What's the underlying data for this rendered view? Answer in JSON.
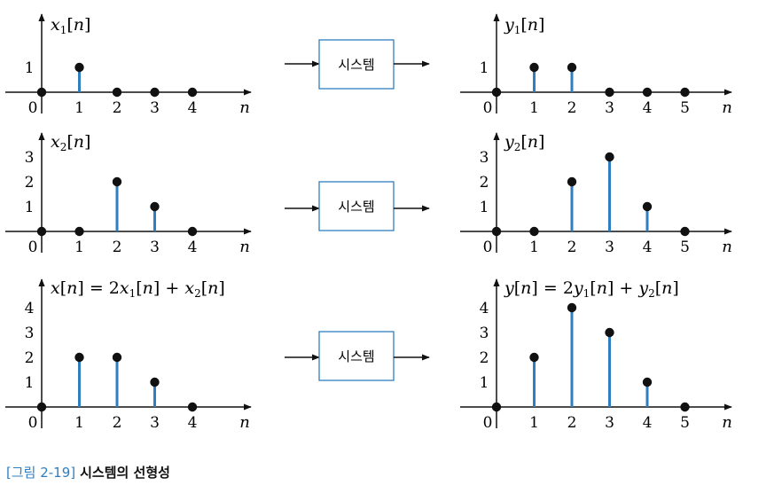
{
  "system_label": "시스템",
  "caption": {
    "number": "[그림 2-19]",
    "title": "시스템의 선형성"
  },
  "colors": {
    "stem": "#2f7fc0",
    "box": "#2f7fc0",
    "axis": "#111111"
  },
  "plots": [
    {
      "id": "x1",
      "title": "x1[n]",
      "x_ticks": [
        0,
        1,
        2,
        3,
        4
      ],
      "y_ticks": [
        1
      ],
      "n_label": "n",
      "values": [
        0,
        1,
        0,
        0,
        0
      ]
    },
    {
      "id": "y1",
      "title": "y1[n]",
      "x_ticks": [
        0,
        1,
        2,
        3,
        4,
        5
      ],
      "y_ticks": [
        1
      ],
      "n_label": "n",
      "values": [
        0,
        1,
        1,
        0,
        0,
        0
      ]
    },
    {
      "id": "x2",
      "title": "x2[n]",
      "x_ticks": [
        0,
        1,
        2,
        3,
        4
      ],
      "y_ticks": [
        1,
        2,
        3
      ],
      "n_label": "n",
      "values": [
        0,
        0,
        2,
        1,
        0
      ]
    },
    {
      "id": "y2",
      "title": "y2[n]",
      "x_ticks": [
        0,
        1,
        2,
        3,
        4,
        5
      ],
      "y_ticks": [
        1,
        2,
        3
      ],
      "n_label": "n",
      "values": [
        0,
        0,
        2,
        3,
        1,
        0
      ]
    },
    {
      "id": "x",
      "title": "x[n] = 2x1[n] + x2[n]",
      "x_ticks": [
        0,
        1,
        2,
        3,
        4
      ],
      "y_ticks": [
        1,
        2,
        3,
        4
      ],
      "n_label": "n",
      "values": [
        0,
        2,
        2,
        1,
        0
      ]
    },
    {
      "id": "y",
      "title": "y[n] = 2y1[n] + y2[n]",
      "x_ticks": [
        0,
        1,
        2,
        3,
        4,
        5
      ],
      "y_ticks": [
        1,
        2,
        3,
        4
      ],
      "n_label": "n",
      "values": [
        0,
        2,
        4,
        3,
        1,
        0
      ]
    }
  ]
}
